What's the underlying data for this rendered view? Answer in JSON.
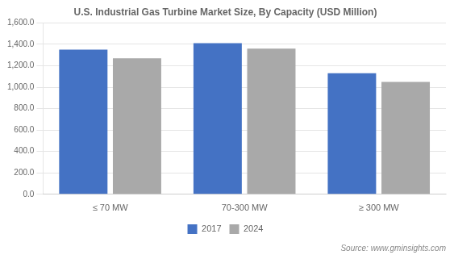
{
  "chart_data": {
    "type": "bar",
    "title": "U.S. Industrial Gas Turbine Market Size, By Capacity (USD Million)",
    "categories": [
      "≤ 70 MW",
      "70-300 MW",
      "≥ 300 MW"
    ],
    "series": [
      {
        "name": "2017",
        "color": "#4472C4",
        "values": [
          1350,
          1410,
          1130
        ]
      },
      {
        "name": "2024",
        "color": "#A9A9A9",
        "values": [
          1270,
          1360,
          1050
        ]
      }
    ],
    "ylim": [
      0,
      1600
    ],
    "yticks": [
      {
        "value": 0,
        "label": "0.0"
      },
      {
        "value": 200,
        "label": "200.0"
      },
      {
        "value": 400,
        "label": "400.0"
      },
      {
        "value": 600,
        "label": "600.0"
      },
      {
        "value": 800,
        "label": "800.0"
      },
      {
        "value": 1000,
        "label": "1,000.0"
      },
      {
        "value": 1200,
        "label": "1,200.0"
      },
      {
        "value": 1400,
        "label": "1,400.0"
      },
      {
        "value": 1600,
        "label": "1,600.0"
      }
    ],
    "grid": true,
    "legend": "bottom",
    "annotations": [
      "Source: www.gminsights.com"
    ]
  }
}
